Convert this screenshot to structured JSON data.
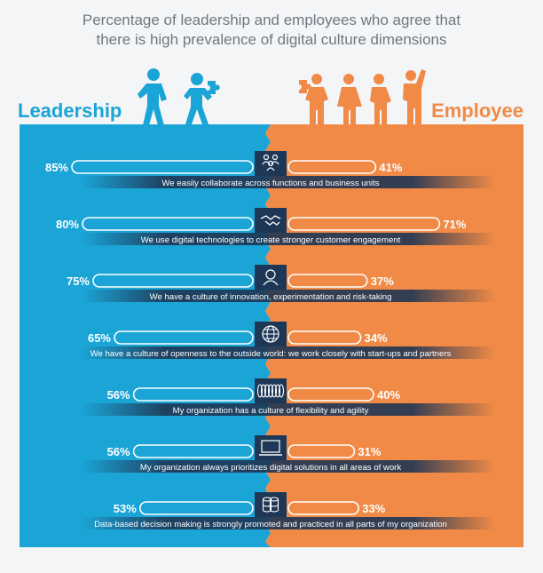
{
  "title_lines": [
    "Percentage of leadership and employees who agree that",
    "there is high prevalence of digital culture dimensions"
  ],
  "colors": {
    "leadership": "#1aa5d6",
    "employee": "#f08a46",
    "icon_box": "#1e3756",
    "label_band": "#1f3654",
    "title": "#6e7882"
  },
  "chart_data": {
    "type": "bar",
    "series": [
      {
        "name": "Leadership",
        "values": [
          85,
          80,
          75,
          65,
          56,
          56,
          53
        ]
      },
      {
        "name": "Employee",
        "values": [
          41,
          71,
          37,
          34,
          40,
          31,
          33
        ]
      }
    ],
    "categories": [
      "We easily collaborate across functions and business units",
      "We use digital technologies to create stronger customer engagement",
      "We have a culture of innovation, experimentation and risk-taking",
      "We have a culture of openness to the outside world: we work closely with start-ups and partners",
      "My organization has a culture of flexibility and agility",
      "My organization always prioritizes digital solutions in all areas of work",
      "Data-based decision making is strongly promoted and practiced in all parts of my organization"
    ],
    "icons": [
      "people-group-icon",
      "handshake-icon",
      "lightbulb-head-icon",
      "globe-icon",
      "spring-coil-icon",
      "laptop-icon",
      "database-icon"
    ],
    "value_suffix": "%"
  }
}
